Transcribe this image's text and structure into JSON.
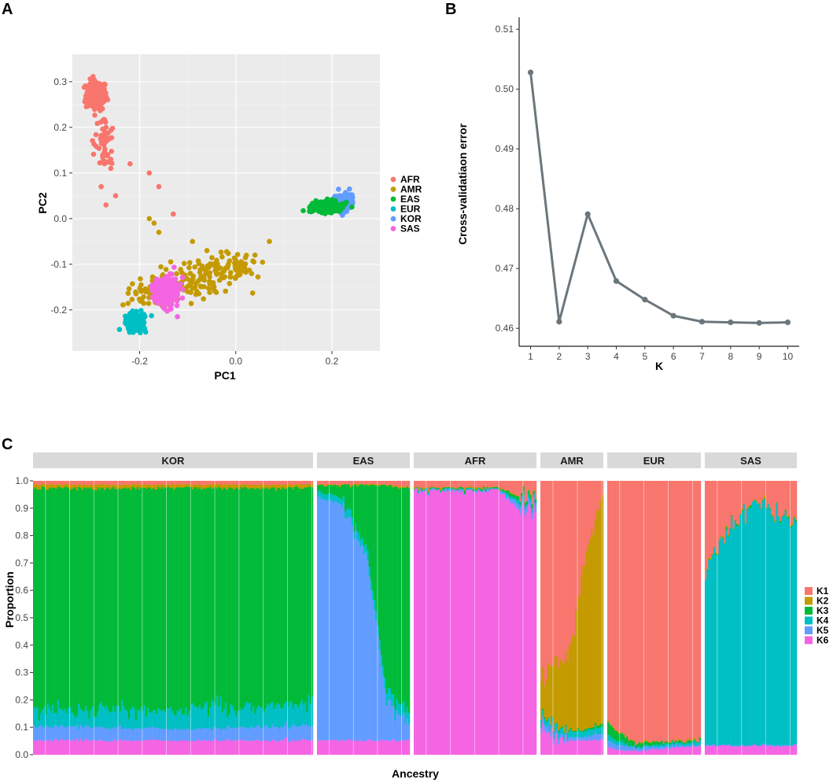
{
  "panels": {
    "a": "A",
    "b": "B",
    "c": "C"
  },
  "chart_data": [
    {
      "type": "scatter",
      "panel": "A",
      "xlabel": "PC1",
      "ylabel": "PC2",
      "xlim": [
        -0.34,
        0.3
      ],
      "ylim": [
        -0.29,
        0.36
      ],
      "xticks": [
        "-0.2",
        "0.0",
        "0.2"
      ],
      "xtick_values": [
        -0.2,
        0.0,
        0.2
      ],
      "yticks": [
        "-0.2",
        "-0.1",
        "0.0",
        "0.1",
        "0.2",
        "0.3"
      ],
      "ytick_values": [
        -0.2,
        -0.1,
        0.0,
        0.1,
        0.2,
        0.3
      ],
      "grid": true,
      "legend_position": "right",
      "series": [
        {
          "name": "AFR",
          "color": "#F8766D",
          "center": [
            -0.29,
            0.27
          ],
          "spread": [
            0.02,
            0.03
          ],
          "tail": [
            [
              -0.27,
              0.2
            ],
            [
              -0.26,
              0.13
            ],
            [
              -0.28,
              0.07
            ],
            [
              -0.27,
              0.03
            ],
            [
              -0.26,
              0.11
            ],
            [
              -0.18,
              0.1
            ],
            [
              -0.16,
              0.07
            ],
            [
              -0.22,
              0.12
            ],
            [
              -0.13,
              0.01
            ],
            [
              -0.25,
              0.05
            ],
            [
              -0.27,
              0.17
            ]
          ]
        },
        {
          "name": "AMR",
          "color": "#C49A00",
          "center": [
            -0.16,
            -0.12
          ],
          "spread": [
            0.05,
            0.04
          ],
          "tail": [
            [
              -0.05,
              -0.1
            ],
            [
              0.0,
              -0.1
            ],
            [
              0.04,
              -0.08
            ],
            [
              0.07,
              -0.05
            ],
            [
              -0.09,
              -0.05
            ],
            [
              -0.18,
              0.0
            ],
            [
              -0.17,
              -0.01
            ],
            [
              -0.16,
              -0.03
            ],
            [
              -0.03,
              -0.12
            ],
            [
              0.01,
              -0.1
            ],
            [
              -0.06,
              -0.07
            ],
            [
              -0.1,
              -0.16
            ]
          ]
        },
        {
          "name": "EAS",
          "color": "#00BA38",
          "center": [
            0.19,
            0.025
          ],
          "spread": [
            0.03,
            0.012
          ],
          "tail": []
        },
        {
          "name": "EUR",
          "color": "#00BFC4",
          "center": [
            -0.21,
            -0.225
          ],
          "spread": [
            0.018,
            0.018
          ],
          "tail": []
        },
        {
          "name": "KOR",
          "color": "#619CFF",
          "center": [
            0.225,
            0.035
          ],
          "spread": [
            0.016,
            0.016
          ],
          "tail": []
        },
        {
          "name": "SAS",
          "color": "#F564E3",
          "center": [
            -0.145,
            -0.16
          ],
          "spread": [
            0.025,
            0.03
          ],
          "tail": []
        }
      ]
    },
    {
      "type": "line",
      "panel": "B",
      "xlabel": "K",
      "ylabel": "Cross-validatiaon error",
      "x": [
        1,
        2,
        3,
        4,
        5,
        6,
        7,
        8,
        9,
        10
      ],
      "y": [
        0.5028,
        0.4611,
        0.4791,
        0.4679,
        0.4648,
        0.4621,
        0.4611,
        0.461,
        0.4609,
        0.461
      ],
      "xlim": [
        0.6,
        10.4
      ],
      "ylim": [
        0.457,
        0.512
      ],
      "xticks": [
        "1",
        "2",
        "3",
        "4",
        "5",
        "6",
        "7",
        "8",
        "9",
        "10"
      ],
      "yticks": [
        "0.46",
        "0.47",
        "0.48",
        "0.49",
        "0.50",
        "0.51"
      ],
      "ytick_values": [
        0.46,
        0.47,
        0.48,
        0.49,
        0.5,
        0.51
      ],
      "line_color": "#6B767C",
      "grid": false
    },
    {
      "type": "bar",
      "stacked": true,
      "panel": "C",
      "xlabel": "Ancestry",
      "ylabel": "Proportion",
      "ylim": [
        0,
        1
      ],
      "yticks": [
        "0.0",
        "0.1",
        "0.2",
        "0.3",
        "0.4",
        "0.5",
        "0.6",
        "0.7",
        "0.8",
        "0.9",
        "1.0"
      ],
      "ytick_values": [
        0,
        0.1,
        0.2,
        0.3,
        0.4,
        0.5,
        0.6,
        0.7,
        0.8,
        0.9,
        1.0
      ],
      "components": [
        "K1",
        "K2",
        "K3",
        "K4",
        "K5",
        "K6"
      ],
      "component_colors": [
        "#F8766D",
        "#C49A00",
        "#00BA38",
        "#00BFC4",
        "#619CFF",
        "#F564E3"
      ],
      "legend_position": "right",
      "groups": [
        {
          "name": "KOR",
          "weight": 0.365,
          "profile": [
            [
              0,
              [
                0.01,
                0.01,
                0.82,
                0.06,
                0.05,
                0.05
              ]
            ],
            [
              0.5,
              [
                0.01,
                0.01,
                0.82,
                0.07,
                0.04,
                0.05
              ]
            ],
            [
              1,
              [
                0.01,
                0.01,
                0.8,
                0.08,
                0.05,
                0.05
              ]
            ]
          ]
        },
        {
          "name": "EAS",
          "weight": 0.121,
          "profile": [
            [
              0,
              [
                0.01,
                0.0,
                0.02,
                0.02,
                0.9,
                0.05
              ]
            ],
            [
              0.25,
              [
                0.01,
                0.0,
                0.04,
                0.02,
                0.88,
                0.05
              ]
            ],
            [
              0.55,
              [
                0.01,
                0.0,
                0.25,
                0.03,
                0.66,
                0.05
              ]
            ],
            [
              0.75,
              [
                0.01,
                0.0,
                0.75,
                0.04,
                0.15,
                0.05
              ]
            ],
            [
              1,
              [
                0.02,
                0.0,
                0.84,
                0.04,
                0.05,
                0.05
              ]
            ]
          ]
        },
        {
          "name": "AFR",
          "weight": 0.16,
          "profile": [
            [
              0,
              [
                0.02,
                0.0,
                0.0,
                0.0,
                0.0,
                0.98
              ]
            ],
            [
              0.7,
              [
                0.02,
                0.0,
                0.0,
                0.0,
                0.0,
                0.98
              ]
            ],
            [
              0.85,
              [
                0.05,
                0.0,
                0.01,
                0.01,
                0.02,
                0.91
              ]
            ],
            [
              1,
              [
                0.06,
                0.0,
                0.01,
                0.01,
                0.02,
                0.9
              ]
            ]
          ]
        },
        {
          "name": "AMR",
          "weight": 0.082,
          "profile": [
            [
              0,
              [
                0.72,
                0.16,
                0.0,
                0.02,
                0.02,
                0.08
              ]
            ],
            [
              0.45,
              [
                0.65,
                0.27,
                0.0,
                0.02,
                0.01,
                0.05
              ]
            ],
            [
              0.7,
              [
                0.3,
                0.62,
                0.0,
                0.02,
                0.01,
                0.05
              ]
            ],
            [
              1,
              [
                0.05,
                0.85,
                0.01,
                0.02,
                0.02,
                0.05
              ]
            ]
          ]
        },
        {
          "name": "EUR",
          "weight": 0.122,
          "profile": [
            [
              0,
              [
                0.9,
                0.0,
                0.04,
                0.02,
                0.02,
                0.02
              ]
            ],
            [
              0.3,
              [
                0.97,
                0.0,
                0.01,
                0.0,
                0.01,
                0.01
              ]
            ],
            [
              1,
              [
                0.96,
                0.0,
                0.0,
                0.01,
                0.0,
                0.03
              ]
            ]
          ]
        },
        {
          "name": "SAS",
          "weight": 0.12,
          "profile": [
            [
              0,
              [
                0.34,
                0.0,
                0.0,
                0.63,
                0.0,
                0.03
              ]
            ],
            [
              0.3,
              [
                0.14,
                0.0,
                0.0,
                0.83,
                0.0,
                0.03
              ]
            ],
            [
              0.55,
              [
                0.08,
                0.0,
                0.0,
                0.89,
                0.0,
                0.03
              ]
            ],
            [
              1,
              [
                0.15,
                0.0,
                0.0,
                0.82,
                0.0,
                0.03
              ]
            ]
          ]
        }
      ]
    }
  ]
}
